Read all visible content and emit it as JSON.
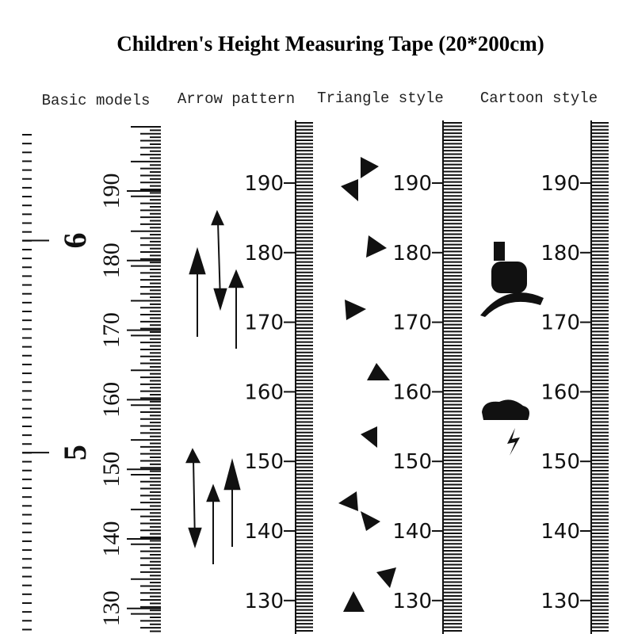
{
  "header": {
    "title": "Children's Height Measuring Tape (20*200cm)"
  },
  "tapes": [
    {
      "label": "Basic models",
      "cm_labels": [
        190,
        180,
        170,
        160,
        150,
        140,
        130
      ],
      "inch_labels": [
        6,
        5
      ]
    },
    {
      "label": "Arrow pattern",
      "cm_labels": [
        190,
        180,
        170,
        160,
        150,
        140,
        130
      ]
    },
    {
      "label": "Triangle style",
      "cm_labels": [
        190,
        180,
        170,
        160,
        150,
        140,
        130
      ]
    },
    {
      "label": "Cartoon style",
      "cm_labels": [
        190,
        180,
        170,
        160,
        150,
        140,
        130
      ]
    }
  ]
}
